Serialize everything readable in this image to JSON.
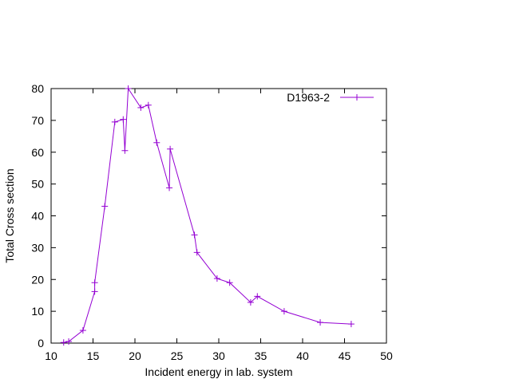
{
  "chart_data": {
    "type": "line",
    "xlabel": "Incident energy in lab. system",
    "ylabel": "Total Cross section",
    "xlim": [
      10,
      50
    ],
    "ylim": [
      0,
      80
    ],
    "xticks": [
      "10",
      "15",
      "20",
      "25",
      "30",
      "35",
      "40",
      "45",
      "50"
    ],
    "yticks": [
      "0",
      "10",
      "20",
      "30",
      "40",
      "50",
      "60",
      "70",
      "80"
    ],
    "grid": false,
    "legend_position": "top-right",
    "series": [
      {
        "name": "D1963-2",
        "color": "#9400d3",
        "marker": "plus",
        "x": [
          11.5,
          12.1,
          13.8,
          15.2,
          15.2,
          16.4,
          17.6,
          18.6,
          18.8,
          19.2,
          20.7,
          21.6,
          22.6,
          24.1,
          24.2,
          27.1,
          27.4,
          29.8,
          31.3,
          33.8,
          34.6,
          37.8,
          42.1,
          45.8
        ],
        "y": [
          0.2,
          0.5,
          4.0,
          16.2,
          19.0,
          43.0,
          69.5,
          70.3,
          60.5,
          80.0,
          74.0,
          74.8,
          63.0,
          48.8,
          61.0,
          34.0,
          28.5,
          20.3,
          19.0,
          12.8,
          14.7,
          10.0,
          6.5,
          6.0
        ]
      }
    ]
  }
}
